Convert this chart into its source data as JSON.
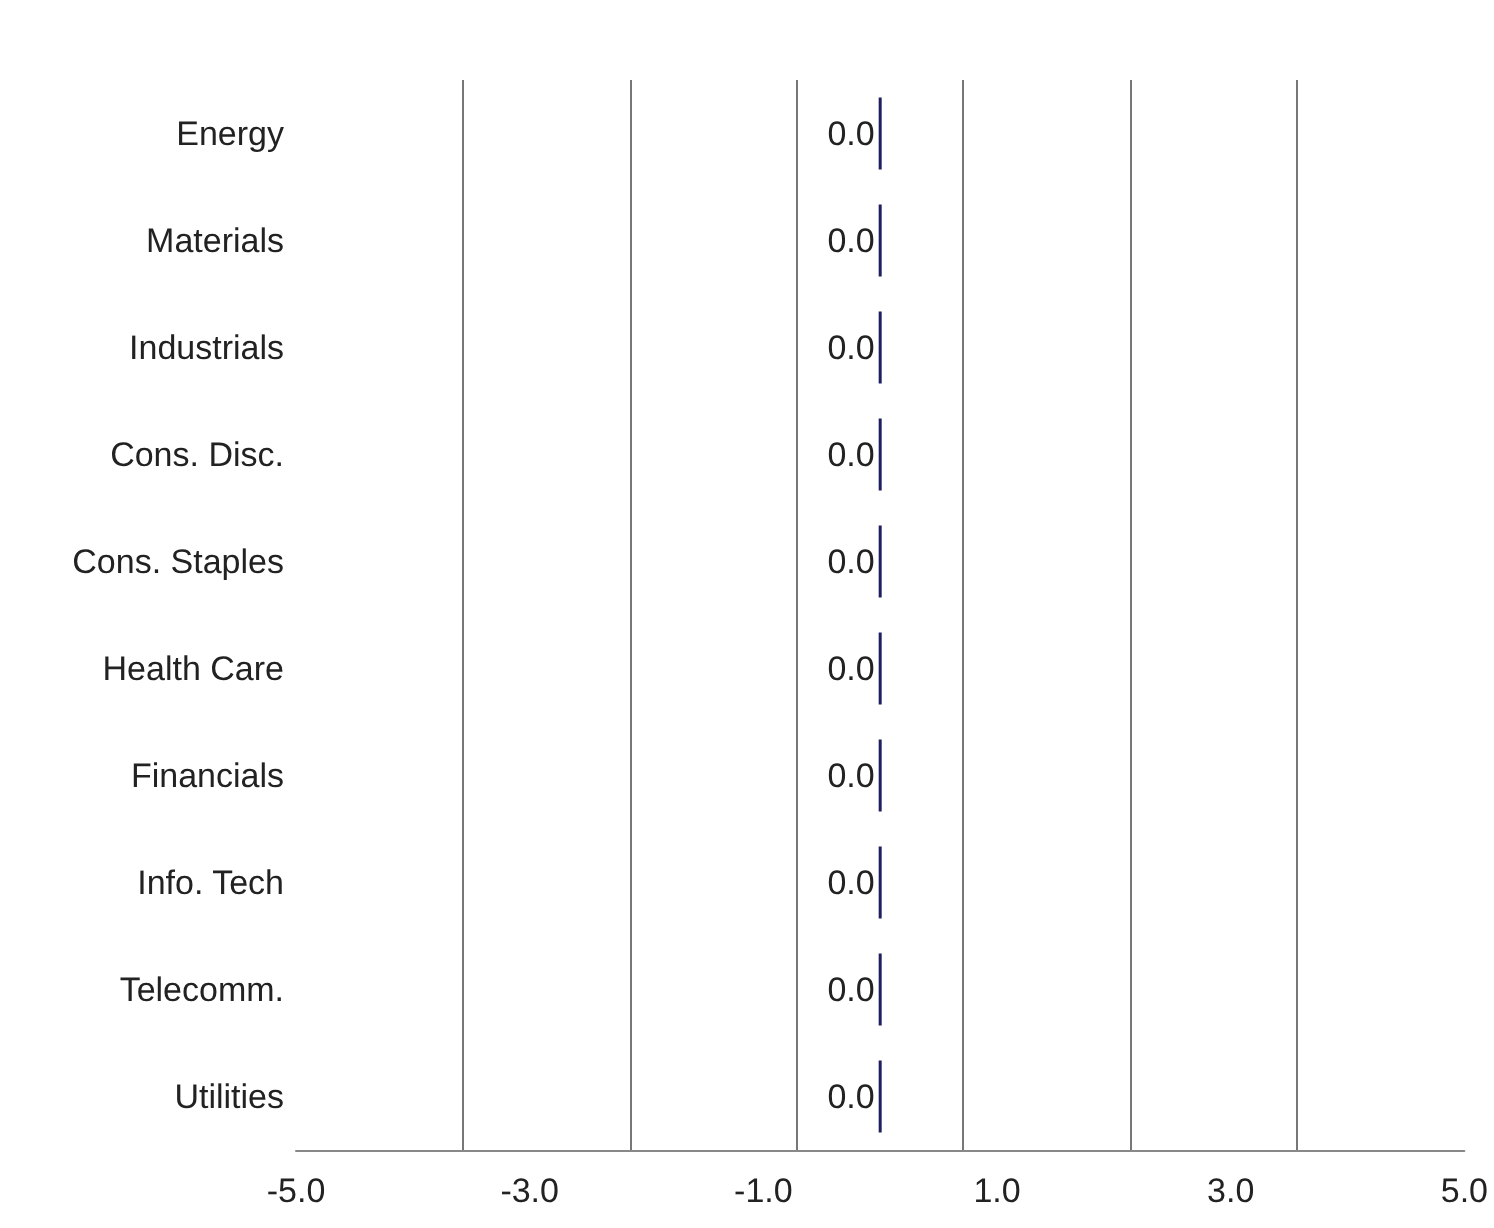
{
  "chart_data": {
    "type": "bar",
    "orientation": "horizontal",
    "categories": [
      "Energy",
      "Materials",
      "Industrials",
      "Cons. Disc.",
      "Cons. Staples",
      "Health Care",
      "Financials",
      "Info. Tech",
      "Telecomm.",
      "Utilities"
    ],
    "values": [
      0,
      0,
      0,
      0,
      0,
      0,
      0,
      0,
      0,
      0
    ],
    "value_labels": [
      "0.0",
      "0.0",
      "0.0",
      "0.0",
      "0.0",
      "0.0",
      "0.0",
      "0.0",
      "0.0",
      "0.0"
    ],
    "color": "#1f1f5f",
    "xlim": [
      -5,
      5
    ],
    "xticks": [
      {
        "value": -5,
        "label": "-5.0"
      },
      {
        "value": -3,
        "label": "-3.0"
      },
      {
        "value": -1,
        "label": "-1.0"
      },
      {
        "value": 1,
        "label": "1.0"
      },
      {
        "value": 3,
        "label": "3.0"
      },
      {
        "value": 5,
        "label": "5.0"
      },
      {
        "value": -3.57,
        "label": null
      },
      {
        "value": -2.14,
        "label": null
      },
      {
        "value": -0.71,
        "label": null
      },
      {
        "value": 0.71,
        "label": null
      },
      {
        "value": 2.14,
        "label": null
      },
      {
        "value": 3.57,
        "label": null
      }
    ],
    "grid": true
  }
}
